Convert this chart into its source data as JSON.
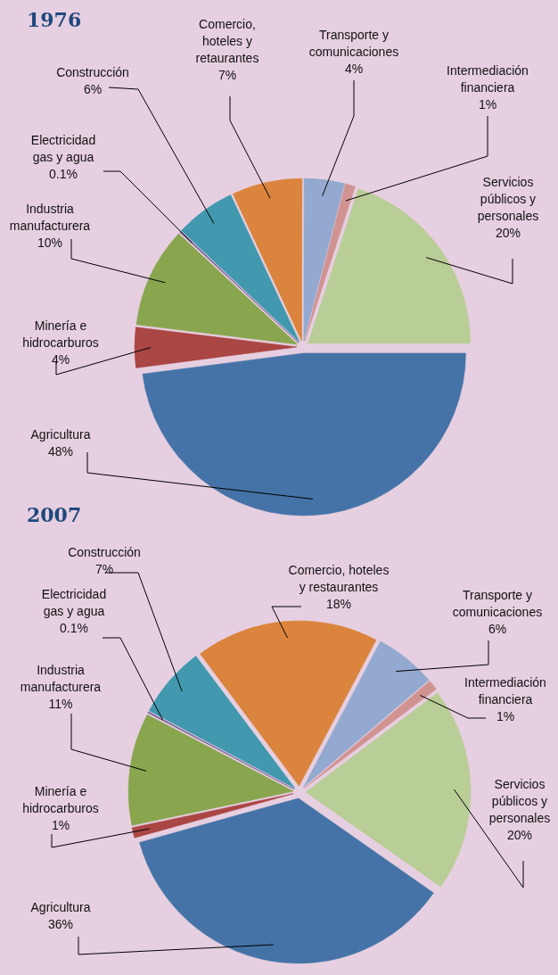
{
  "chart_data": [
    {
      "type": "pie",
      "title": "1976",
      "categories": [
        "Agricultura",
        "Minería e\nhidrocarburos",
        "Industria\nmanufacturera",
        "Electricidad\ngas y agua",
        "Construcción",
        "Comercio,\nhoteles y\nretaurantes",
        "Transporte y\ncomunicaciones",
        "Intermediación\nfinanciera",
        "Servicios\npúblicos y\npersonales"
      ],
      "values": [
        48,
        4,
        10,
        0.1,
        6,
        7,
        4,
        1,
        20
      ],
      "value_labels": [
        "48%",
        "4%",
        "10%",
        "0.1%",
        "6%",
        "7%",
        "4%",
        "1%",
        "20%"
      ],
      "colors": [
        "#4573a7",
        "#aa4644",
        "#89a54e",
        "#71588f",
        "#4198af",
        "#db843d",
        "#93a9cf",
        "#d19392",
        "#b9cd96"
      ]
    },
    {
      "type": "pie",
      "title": "2007",
      "categories": [
        "Agricultura",
        "Minería e\nhidrocarburos",
        "Industria\nmanufacturera",
        "Electricidad\ngas y agua",
        "Construcción",
        "Comercio, hoteles\ny restaurantes",
        "Transporte y\ncomunicaciones",
        "Intermediación\nfinanciera",
        "Servicios\npúblicos y\npersonales"
      ],
      "values": [
        36,
        1,
        11,
        0.1,
        7,
        18,
        6,
        1,
        20
      ],
      "value_labels": [
        "36%",
        "1%",
        "11%",
        "0.1%",
        "7%",
        "18%",
        "6%",
        "1%",
        "20%"
      ],
      "colors": [
        "#4573a7",
        "#aa4644",
        "#89a54e",
        "#71588f",
        "#4198af",
        "#db843d",
        "#93a9cf",
        "#d19392",
        "#b9cd96"
      ]
    }
  ]
}
